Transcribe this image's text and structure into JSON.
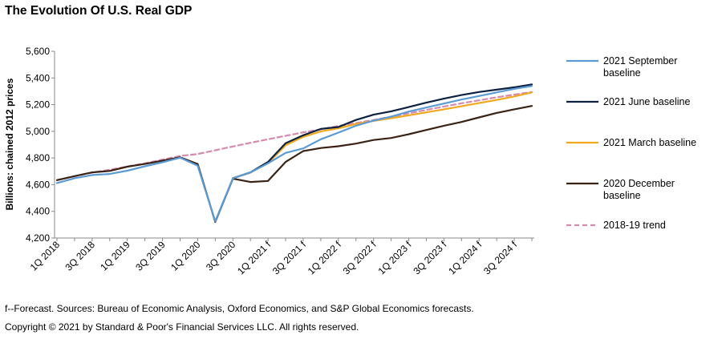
{
  "title": "The Evolution Of U.S. Real GDP",
  "chart_data": {
    "type": "line",
    "title": "The Evolution Of U.S. Real GDP",
    "xlabel": "",
    "ylabel": "Billions: chained 2012 prices",
    "ylim": [
      4200,
      5600
    ],
    "yticks": [
      4200,
      4400,
      4600,
      4800,
      5000,
      5200,
      5400,
      5600
    ],
    "ytick_labels": [
      "4,200",
      "4,400",
      "4,600",
      "4,800",
      "5,000",
      "5,200",
      "5,400",
      "5,600"
    ],
    "grid": false,
    "legend": "right",
    "x_labels": [
      "1Q 2018",
      "3Q 2018",
      "1Q 2019",
      "3Q 2019",
      "1Q 2020",
      "3Q 2020",
      "1Q 2021 f",
      "3Q 2021 f",
      "1Q 2022 f",
      "3Q 2022 f",
      "1Q 2023 f",
      "3Q 2023 f",
      "1Q 2024 f",
      "3Q 2024 f"
    ],
    "x_label_indices": [
      0,
      2,
      4,
      6,
      8,
      10,
      12,
      14,
      16,
      18,
      20,
      22,
      24,
      26
    ],
    "x_count": 28,
    "series": [
      {
        "name": "2021 September baseline",
        "color": "#5B9BD5",
        "dash": false,
        "start": 0,
        "values": [
          4612,
          4648,
          4672,
          4680,
          4705,
          4738,
          4768,
          4802,
          4742,
          4325,
          4648,
          4692,
          4760,
          4838,
          4872,
          4940,
          4990,
          5042,
          5080,
          5110,
          5148,
          5178,
          5208,
          5238,
          5265,
          5292,
          5318,
          5340
        ]
      },
      {
        "name": "2021 June baseline",
        "color": "#0D2240",
        "dash": false,
        "start": 10,
        "values": [
          4648,
          4692,
          4770,
          4910,
          4970,
          5018,
          5032,
          5085,
          5125,
          5150,
          5182,
          5215,
          5245,
          5272,
          5295,
          5312,
          5330,
          5352
        ]
      },
      {
        "name": "2021 March baseline",
        "color": "#F2A81D",
        "dash": false,
        "start": 10,
        "values": [
          4648,
          4690,
          4762,
          4895,
          4958,
          5000,
          5022,
          5055,
          5078,
          5098,
          5120,
          5142,
          5165,
          5188,
          5212,
          5235,
          5262,
          5292
        ]
      },
      {
        "name": "2020 December baseline",
        "color": "#3B2314",
        "dash": false,
        "start": 0,
        "values": [
          4634,
          4664,
          4692,
          4703,
          4735,
          4755,
          4780,
          4805,
          4755,
          4320,
          4645,
          4620,
          4628,
          4770,
          4852,
          4875,
          4888,
          4908,
          4935,
          4950,
          4978,
          5010,
          5042,
          5070,
          5104,
          5138,
          5165,
          5190
        ]
      },
      {
        "name": "2018-19 trend",
        "color": "#D68AAE",
        "dash": true,
        "start": 0,
        "values": [
          4634,
          4663,
          4690,
          4712,
          4736,
          4760,
          4788,
          4815,
          4830,
          4858,
          4886,
          4914,
          4940,
          4966,
          4992,
          5015,
          5040,
          5062,
          5085,
          5110,
          5135,
          5160,
          5186,
          5210,
          5232,
          5255,
          5275,
          5295
        ]
      }
    ]
  },
  "legend_lines": [
    [
      "2021 September",
      "baseline"
    ],
    [
      "2021 June baseline"
    ],
    [
      "2021 March baseline"
    ],
    [
      "2020 December",
      "baseline"
    ],
    [
      "2018-19 trend"
    ]
  ],
  "footnote": "f--Forecast. Sources: Bureau of Economic Analysis, Oxford Economics, and S&P Global Economics forecasts.",
  "copyright": "Copyright © 2021 by Standard & Poor's Financial Services LLC. All rights reserved."
}
